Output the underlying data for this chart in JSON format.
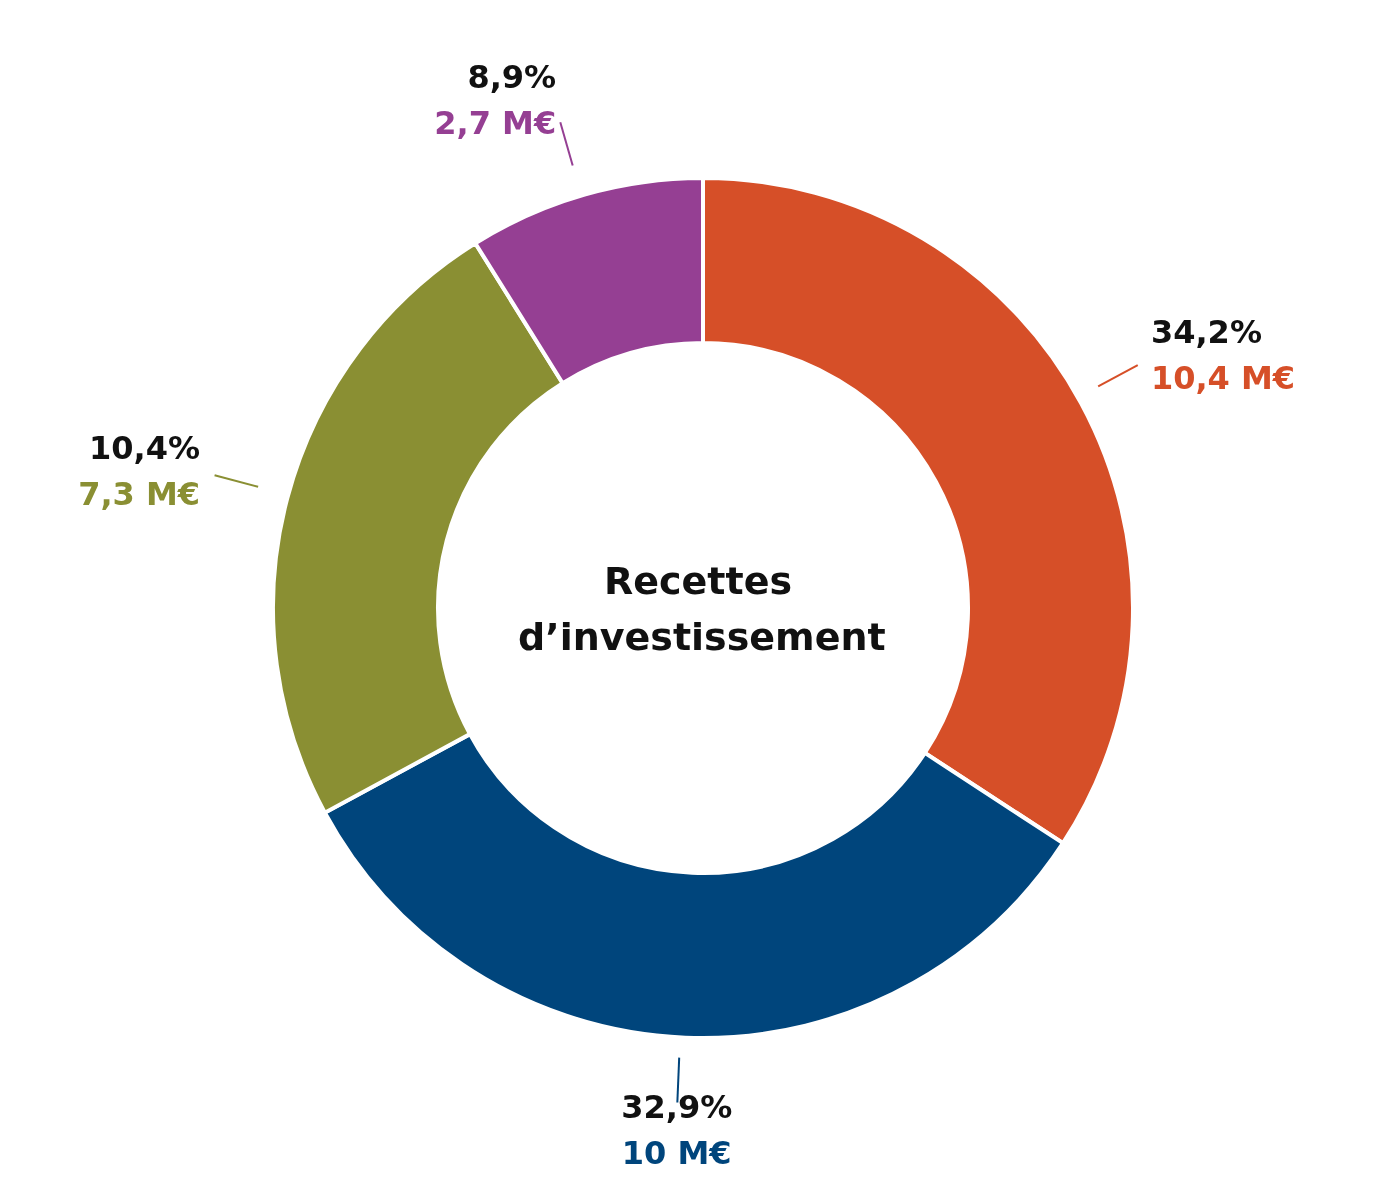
{
  "chart_data": {
    "type": "donut",
    "title": "Recettes d’investissement",
    "categories": [
      null,
      null,
      null,
      null
    ],
    "values": [
      10.4,
      10,
      7.3,
      2.7
    ],
    "colors": [
      "#d64f28",
      "#00457c",
      "#8a8f33",
      "#953f93"
    ],
    "value_labels": [
      "34,2%\n10,4 M€",
      "32,9%\n10 M€",
      "10,4%\n7,3 M€",
      "8,9%\n2,7 M€"
    ],
    "legend": false
  }
}
